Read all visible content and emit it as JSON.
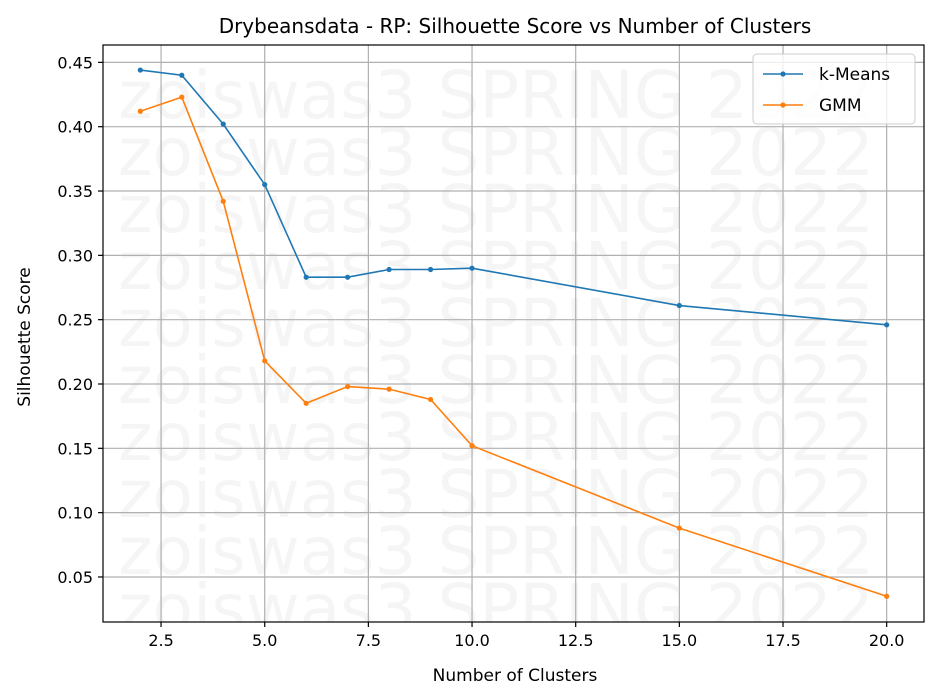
{
  "chart_data": {
    "type": "line",
    "title": "Drybeansdata - RP: Silhouette Score vs Number of Clusters",
    "xlabel": "Number of Clusters",
    "ylabel": "Silhouette Score",
    "xlim": [
      1.1,
      20.9
    ],
    "ylim": [
      0.015,
      0.4635
    ],
    "xticks": [
      2.5,
      5.0,
      7.5,
      10.0,
      12.5,
      15.0,
      17.5,
      20.0
    ],
    "xtick_labels": [
      "2.5",
      "5.0",
      "7.5",
      "10.0",
      "12.5",
      "15.0",
      "17.5",
      "20.0"
    ],
    "yticks": [
      0.05,
      0.1,
      0.15,
      0.2,
      0.25,
      0.3,
      0.35,
      0.4,
      0.45
    ],
    "ytick_labels": [
      "0.05",
      "0.10",
      "0.15",
      "0.20",
      "0.25",
      "0.30",
      "0.35",
      "0.40",
      "0.45"
    ],
    "grid": true,
    "legend_position": "top-right",
    "series": [
      {
        "name": "k-Means",
        "color": "#1f77b4",
        "x": [
          2,
          3,
          4,
          5,
          6,
          7,
          8,
          9,
          10,
          15,
          20
        ],
        "y": [
          0.444,
          0.44,
          0.402,
          0.355,
          0.283,
          0.283,
          0.289,
          0.289,
          0.29,
          0.261,
          0.246
        ]
      },
      {
        "name": "GMM",
        "color": "#ff7f0e",
        "x": [
          2,
          3,
          4,
          5,
          6,
          7,
          8,
          9,
          10,
          15,
          20
        ],
        "y": [
          0.412,
          0.423,
          0.342,
          0.218,
          0.185,
          0.198,
          0.196,
          0.188,
          0.152,
          0.088,
          0.035
        ]
      }
    ],
    "watermark": "zoiswas3 SPRING 2022"
  }
}
